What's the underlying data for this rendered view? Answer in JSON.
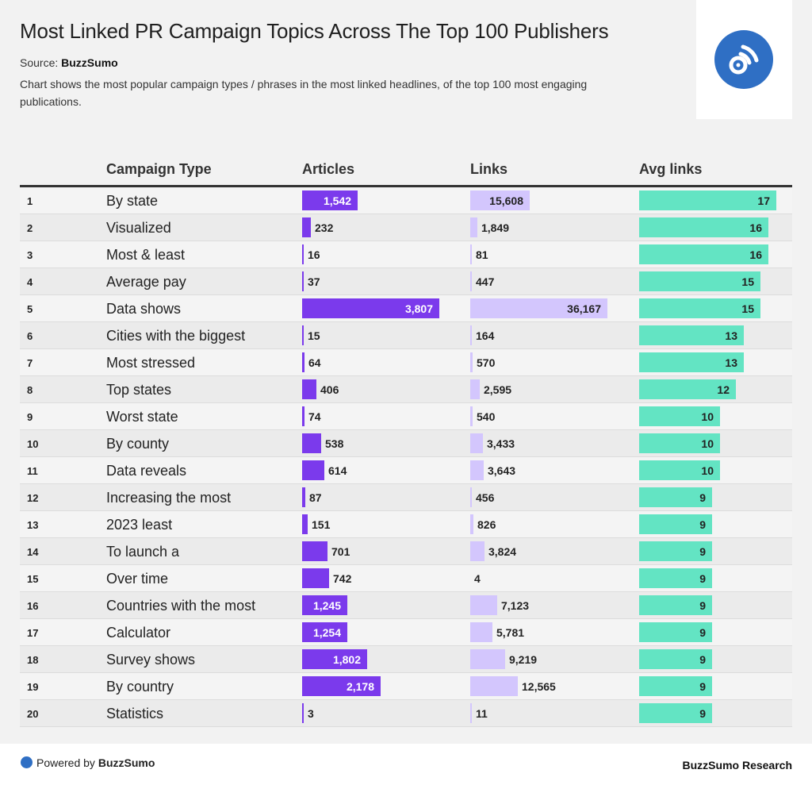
{
  "header": {
    "title": "Most Linked PR Campaign Topics Across The Top 100 Publishers",
    "source_label": "Source:",
    "source_name": "BuzzSumo",
    "description": "Chart shows the most popular campaign types / phrases in the most linked headlines, of the top 100 most engaging publications.",
    "logo_icon": "buzzsumo-rss-logo-icon"
  },
  "footer": {
    "powered_label": "Powered by",
    "powered_brand": "BuzzSumo",
    "research": "BuzzSumo Research"
  },
  "colors": {
    "articles_bar": "#7b3aec",
    "links_bar": "#d3c6fd",
    "avg_links_bar": "#63e4c3",
    "brand_blue": "#2f6fc4"
  },
  "chart_data": {
    "type": "table",
    "title": "Most Linked PR Campaign Topics Across The Top 100 Publishers",
    "columns": [
      "",
      "Campaign Type",
      "Articles",
      "Links",
      "Avg links"
    ],
    "max": {
      "articles": 3807,
      "links": 36167,
      "avg_links": 17
    },
    "rows": [
      {
        "rank": "1",
        "type": "By state",
        "articles": 1542,
        "articles_label": "1,542",
        "links": 15608,
        "links_label": "15,608",
        "avg_links": 17,
        "avg_label": "17"
      },
      {
        "rank": "2",
        "type": "Visualized",
        "articles": 232,
        "articles_label": "232",
        "links": 1849,
        "links_label": "1,849",
        "avg_links": 16,
        "avg_label": "16"
      },
      {
        "rank": "3",
        "type": "Most & least",
        "articles": 16,
        "articles_label": "16",
        "links": 81,
        "links_label": "81",
        "avg_links": 16,
        "avg_label": "16"
      },
      {
        "rank": "4",
        "type": "Average pay",
        "articles": 37,
        "articles_label": "37",
        "links": 447,
        "links_label": "447",
        "avg_links": 15,
        "avg_label": "15"
      },
      {
        "rank": "5",
        "type": "Data shows",
        "articles": 3807,
        "articles_label": "3,807",
        "links": 36167,
        "links_label": "36,167",
        "avg_links": 15,
        "avg_label": "15"
      },
      {
        "rank": "6",
        "type": "Cities with the biggest",
        "articles": 15,
        "articles_label": "15",
        "links": 164,
        "links_label": "164",
        "avg_links": 13,
        "avg_label": "13"
      },
      {
        "rank": "7",
        "type": "Most stressed",
        "articles": 64,
        "articles_label": "64",
        "links": 570,
        "links_label": "570",
        "avg_links": 13,
        "avg_label": "13"
      },
      {
        "rank": "8",
        "type": "Top states",
        "articles": 406,
        "articles_label": "406",
        "links": 2595,
        "links_label": "2,595",
        "avg_links": 12,
        "avg_label": "12"
      },
      {
        "rank": "9",
        "type": "Worst state",
        "articles": 74,
        "articles_label": "74",
        "links": 540,
        "links_label": "540",
        "avg_links": 10,
        "avg_label": "10"
      },
      {
        "rank": "10",
        "type": "By county",
        "articles": 538,
        "articles_label": "538",
        "links": 3433,
        "links_label": "3,433",
        "avg_links": 10,
        "avg_label": "10"
      },
      {
        "rank": "11",
        "type": "Data reveals",
        "articles": 614,
        "articles_label": "614",
        "links": 3643,
        "links_label": "3,643",
        "avg_links": 10,
        "avg_label": "10"
      },
      {
        "rank": "12",
        "type": "Increasing the most",
        "articles": 87,
        "articles_label": "87",
        "links": 456,
        "links_label": "456",
        "avg_links": 9,
        "avg_label": "9"
      },
      {
        "rank": "13",
        "type": "2023 least",
        "articles": 151,
        "articles_label": "151",
        "links": 826,
        "links_label": "826",
        "avg_links": 9,
        "avg_label": "9"
      },
      {
        "rank": "14",
        "type": "To launch a",
        "articles": 701,
        "articles_label": "701",
        "links": 3824,
        "links_label": "3,824",
        "avg_links": 9,
        "avg_label": "9"
      },
      {
        "rank": "15",
        "type": "Over time",
        "articles": 742,
        "articles_label": "742",
        "links": 4,
        "links_label": "4",
        "avg_links": 9,
        "avg_label": "9"
      },
      {
        "rank": "16",
        "type": "Countries with the most",
        "articles": 1245,
        "articles_label": "1,245",
        "links": 7123,
        "links_label": "7,123",
        "avg_links": 9,
        "avg_label": "9"
      },
      {
        "rank": "17",
        "type": "Calculator",
        "articles": 1254,
        "articles_label": "1,254",
        "links": 5781,
        "links_label": "5,781",
        "avg_links": 9,
        "avg_label": "9"
      },
      {
        "rank": "18",
        "type": "Survey shows",
        "articles": 1802,
        "articles_label": "1,802",
        "links": 9219,
        "links_label": "9,219",
        "avg_links": 9,
        "avg_label": "9"
      },
      {
        "rank": "19",
        "type": "By country",
        "articles": 2178,
        "articles_label": "2,178",
        "links": 12565,
        "links_label": "12,565",
        "avg_links": 9,
        "avg_label": "9"
      },
      {
        "rank": "20",
        "type": "Statistics",
        "articles": 3,
        "articles_label": "3",
        "links": 11,
        "links_label": "11",
        "avg_links": 9,
        "avg_label": "9"
      }
    ]
  }
}
